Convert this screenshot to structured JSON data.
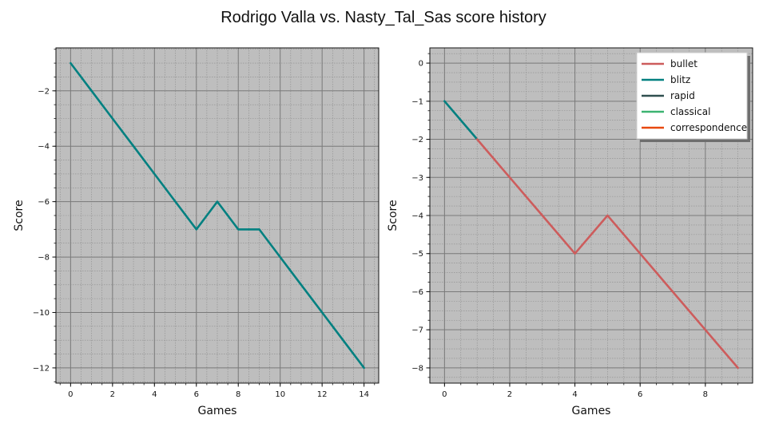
{
  "figure": {
    "title": "Rodrigo Valla vs. Nasty_Tal_Sas score history"
  },
  "chart_data": [
    {
      "type": "line",
      "title": "",
      "xlabel": "Games",
      "ylabel": "Score",
      "xlim": [
        -0.7,
        14.7
      ],
      "ylim": [
        -12.55,
        -0.45
      ],
      "x_ticks": [
        0,
        2,
        4,
        6,
        8,
        10,
        12,
        14
      ],
      "y_ticks": [
        -12,
        -10,
        -8,
        -6,
        -4,
        -2
      ],
      "grid": true,
      "series": [
        {
          "name": "blitz",
          "color": "#008080",
          "x": [
            0,
            1,
            2,
            3,
            4,
            5,
            6,
            7,
            8,
            9,
            10,
            11,
            12,
            13,
            14
          ],
          "y": [
            -1,
            -2,
            -3,
            -4,
            -5,
            -6,
            -7,
            -6,
            -7,
            -7,
            -8,
            -9,
            -10,
            -11,
            -12
          ]
        }
      ]
    },
    {
      "type": "line",
      "title": "",
      "xlabel": "Games",
      "ylabel": "Score",
      "xlim": [
        -0.45,
        9.45
      ],
      "ylim": [
        -8.4,
        0.4
      ],
      "x_ticks": [
        0,
        2,
        4,
        6,
        8
      ],
      "y_ticks": [
        0,
        -1,
        -2,
        -3,
        -4,
        -5,
        -6,
        -7,
        -8
      ],
      "grid": true,
      "legend_position": "top-right",
      "legend": [
        {
          "name": "bullet",
          "color": "#cd5c5c"
        },
        {
          "name": "blitz",
          "color": "#008080"
        },
        {
          "name": "rapid",
          "color": "#2f4f4f"
        },
        {
          "name": "classical",
          "color": "#3cb371"
        },
        {
          "name": "correspondence",
          "color": "#e8490f"
        }
      ],
      "series": [
        {
          "name": "blitz",
          "color": "#008080",
          "x": [
            0,
            1
          ],
          "y": [
            -1,
            -2
          ]
        },
        {
          "name": "bullet",
          "color": "#cd5c5c",
          "x": [
            1,
            2,
            3,
            4,
            5,
            6,
            7,
            8,
            9
          ],
          "y": [
            -2,
            -3,
            -4,
            -5,
            -4,
            -5,
            -6,
            -7,
            -8
          ]
        }
      ]
    }
  ]
}
